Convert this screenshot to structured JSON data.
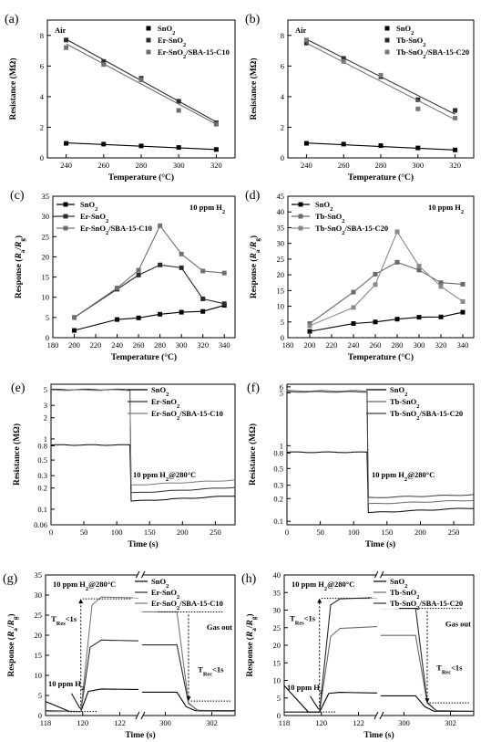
{
  "chart_data": [
    {
      "id": "a",
      "type": "line",
      "panel_label": "(a)",
      "annotation": "Air",
      "xlabel": "Temperature (°C)",
      "ylabel": "Resistance (MΩ)",
      "xlim": [
        230,
        330
      ],
      "ylim": [
        0,
        9
      ],
      "xticks": [
        240,
        260,
        280,
        300,
        320
      ],
      "yticks": [
        0,
        2,
        4,
        6,
        8
      ],
      "legend_position": "top-right",
      "series": [
        {
          "name": "SnO₂",
          "color": "#000000",
          "x": [
            240,
            260,
            280,
            300,
            320
          ],
          "y": [
            0.95,
            0.9,
            0.78,
            0.68,
            0.55
          ],
          "fit": [
            0.98,
            0.55
          ]
        },
        {
          "name": "Er-SnO₂",
          "color": "#2b2b2b",
          "x": [
            240,
            260,
            280,
            300,
            320
          ],
          "y": [
            7.7,
            6.3,
            5.2,
            3.7,
            2.3
          ],
          "fit": [
            7.75,
            2.35
          ]
        },
        {
          "name": "Er-SnO₂/SBA-15-C10",
          "color": "#6e6e6e",
          "x": [
            240,
            260,
            280,
            300,
            320
          ],
          "y": [
            7.2,
            6.1,
            5.1,
            3.1,
            2.2
          ],
          "fit": [
            7.45,
            2.2
          ]
        }
      ]
    },
    {
      "id": "b",
      "type": "line",
      "panel_label": "(b)",
      "annotation": "Air",
      "xlabel": "Temperature (°C)",
      "ylabel": "Resistance (MΩ)",
      "xlim": [
        230,
        330
      ],
      "ylim": [
        0,
        9
      ],
      "xticks": [
        240,
        260,
        280,
        300,
        320
      ],
      "yticks": [
        0,
        2,
        4,
        6,
        8
      ],
      "legend_position": "top-right",
      "series": [
        {
          "name": "SnO₂",
          "color": "#000000",
          "x": [
            240,
            260,
            280,
            300,
            320
          ],
          "y": [
            0.95,
            0.9,
            0.8,
            0.65,
            0.52
          ],
          "fit": [
            0.97,
            0.52
          ]
        },
        {
          "name": "Tb-SnO₂",
          "color": "#2b2b2b",
          "x": [
            240,
            260,
            280,
            300,
            320
          ],
          "y": [
            7.5,
            6.5,
            5.3,
            3.8,
            3.1
          ],
          "fit": [
            7.75,
            2.85
          ]
        },
        {
          "name": "Tb-SnO₂/SBA-15-C20",
          "color": "#7a7a7a",
          "x": [
            240,
            260,
            280,
            300,
            320
          ],
          "y": [
            7.7,
            6.3,
            5.4,
            3.2,
            2.6
          ],
          "fit": [
            7.5,
            2.5
          ]
        }
      ]
    },
    {
      "id": "c",
      "type": "line",
      "panel_label": "(c)",
      "annotation": "10 ppm H₂",
      "xlabel": "Temperature (°C)",
      "ylabel": "Response (Ra/Rg)",
      "xlim": [
        180,
        350
      ],
      "ylim": [
        0,
        35
      ],
      "xticks": [
        180,
        200,
        220,
        240,
        260,
        280,
        300,
        320,
        340
      ],
      "yticks": [
        0,
        5,
        10,
        15,
        20,
        25,
        30,
        35
      ],
      "legend_position": "top-left",
      "series": [
        {
          "name": "SnO₂",
          "color": "#000000",
          "x": [
            200,
            240,
            260,
            280,
            300,
            320,
            340
          ],
          "y": [
            1.8,
            4.5,
            4.9,
            5.8,
            6.3,
            6.5,
            8.0
          ]
        },
        {
          "name": "Er-SnO₂",
          "color": "#2b2b2b",
          "x": [
            200,
            240,
            260,
            280,
            300,
            320,
            340
          ],
          "y": [
            5.0,
            12.0,
            15.5,
            18.0,
            17.3,
            9.6,
            8.4
          ]
        },
        {
          "name": "Er-SnO₂/SBA-15-C10",
          "color": "#707070",
          "x": [
            200,
            240,
            260,
            280,
            300,
            320,
            340
          ],
          "y": [
            5.0,
            12.3,
            16.7,
            27.7,
            20.7,
            16.5,
            16.0
          ]
        }
      ]
    },
    {
      "id": "d",
      "type": "line",
      "panel_label": "(d)",
      "annotation": "10 ppm H₂",
      "xlabel": "Temperature (°C)",
      "ylabel": "Response (Ra/Rg)",
      "xlim": [
        180,
        350
      ],
      "ylim": [
        0,
        45
      ],
      "xticks": [
        180,
        200,
        220,
        240,
        260,
        280,
        300,
        320,
        340
      ],
      "yticks": [
        0,
        5,
        10,
        15,
        20,
        25,
        30,
        35,
        40,
        45
      ],
      "legend_position": "top-left",
      "series": [
        {
          "name": "SnO₂",
          "color": "#000000",
          "x": [
            200,
            240,
            260,
            280,
            300,
            320,
            340
          ],
          "y": [
            2.0,
            4.5,
            5.0,
            5.9,
            6.5,
            6.6,
            8.1
          ]
        },
        {
          "name": "Tb-SnO₂",
          "color": "#6a6a6a",
          "x": [
            200,
            240,
            260,
            280,
            300,
            320,
            340
          ],
          "y": [
            4.5,
            14.5,
            20.2,
            24.0,
            21.5,
            17.5,
            17.0
          ]
        },
        {
          "name": "Tb-SnO₂/SBA-15-C20",
          "color": "#8a8a8a",
          "x": [
            200,
            240,
            260,
            280,
            300,
            320,
            340
          ],
          "y": [
            3.8,
            9.6,
            16.9,
            33.7,
            22.8,
            16.3,
            11.5
          ]
        }
      ]
    },
    {
      "id": "e",
      "type": "line",
      "panel_label": "(e)",
      "annotation": "10 ppm H₂@280°C",
      "xlabel": "Time (s)",
      "ylabel": "Resistance (MΩ)",
      "yscale": "log",
      "xlim": [
        0,
        280
      ],
      "ylim": [
        0.06,
        6
      ],
      "xticks": [
        0,
        50,
        100,
        150,
        200,
        250
      ],
      "yticks": [
        5,
        3,
        2,
        1,
        0.8,
        0.5,
        0.3,
        0.2,
        0.1,
        0.06
      ],
      "ytick_labels": [
        "5",
        "3",
        "2",
        "1",
        "0.8",
        "0.5",
        "0.3",
        "0.2",
        "0.1",
        "0.06"
      ],
      "legend_position": "top-right",
      "series": [
        {
          "name": "SnO₂",
          "color": "#000000",
          "x": [
            0,
            120,
            122,
            280
          ],
          "y": [
            0.82,
            0.82,
            0.13,
            0.155
          ]
        },
        {
          "name": "Er-SnO₂",
          "color": "#2b2b2b",
          "x": [
            0,
            120,
            122,
            280
          ],
          "y": [
            5.05,
            5.05,
            0.17,
            0.205
          ]
        },
        {
          "name": "Er-SnO₂/SBA-15-C10",
          "color": "#777777",
          "x": [
            0,
            120,
            122,
            280
          ],
          "y": [
            4.95,
            4.95,
            0.22,
            0.26
          ]
        }
      ]
    },
    {
      "id": "f",
      "type": "line",
      "panel_label": "(f)",
      "annotation": "10 ppm H₂@280°C",
      "xlabel": "Time (s)",
      "ylabel": "Resistance (MΩ)",
      "yscale": "log",
      "xlim": [
        0,
        280
      ],
      "ylim": [
        0.09,
        6.5
      ],
      "xticks": [
        0,
        50,
        100,
        150,
        200,
        250
      ],
      "yticks": [
        6,
        5,
        1,
        0.8,
        0.5,
        0.3,
        0.2,
        0.1
      ],
      "ytick_labels": [
        "6",
        "5",
        "1",
        "0.8",
        "0.5",
        "0.3",
        "0.2",
        "0.1"
      ],
      "legend_position": "top-right",
      "series": [
        {
          "name": "SnO₂",
          "color": "#000000",
          "x": [
            0,
            120,
            122,
            280
          ],
          "y": [
            0.82,
            0.82,
            0.13,
            0.15
          ]
        },
        {
          "name": "Tb-SnO₂",
          "color": "#666666",
          "x": [
            0,
            120,
            122,
            280
          ],
          "y": [
            5.3,
            5.3,
            0.17,
            0.19
          ]
        },
        {
          "name": "Tb-SnO₂/SBA-15-C20",
          "color": "#3a3a3a",
          "x": [
            0,
            120,
            122,
            280
          ],
          "y": [
            5.15,
            5.15,
            0.205,
            0.225
          ]
        }
      ]
    },
    {
      "id": "g",
      "type": "line",
      "panel_label": "(g)",
      "annotation": "10 ppm H₂@280°C",
      "xlabel": "Time (s)",
      "ylabel": "Response (Ra/Rg)",
      "broken_x": true,
      "xlim_left": [
        118,
        123
      ],
      "xlim_right": [
        299,
        303
      ],
      "xticks_left": [
        118,
        120,
        122
      ],
      "xticks_right": [
        300,
        302
      ],
      "ylim": [
        0,
        35
      ],
      "yticks": [
        0,
        5,
        10,
        15,
        20,
        25,
        30,
        35
      ],
      "legend_position": "top-right",
      "labels": {
        "h2_in": "10 ppm H₂",
        "gas_out": "Gas out",
        "t_res": "T",
        "t_res_sub": "Res",
        "t_res_tail": "<1s",
        "t_rec": "T",
        "t_rec_sub": "Rec",
        "t_rec_tail": "<1s"
      },
      "series": [
        {
          "name": "SnO₂",
          "color": "#000000",
          "left": {
            "x": [
              118,
              119.3,
              119.9,
              120.3,
              121,
              123
            ],
            "y": [
              3.5,
              1.0,
              1.0,
              6.0,
              6.6,
              6.5
            ]
          },
          "right": {
            "x": [
              299,
              300.5,
              300.9,
              301.3,
              303
            ],
            "y": [
              5.8,
              5.8,
              2.2,
              1.2,
              1.2
            ]
          }
        },
        {
          "name": "Er-SnO₂",
          "color": "#2b2b2b",
          "left": {
            "x": [
              118,
              119.9,
              120.4,
              121,
              123
            ],
            "y": [
              1.2,
              1.0,
              17.0,
              18.8,
              18.6
            ]
          },
          "right": {
            "x": [
              299,
              300.5,
              301.0,
              301.4,
              303
            ],
            "y": [
              17.6,
              17.6,
              3.0,
              1.3,
              1.1
            ]
          }
        },
        {
          "name": "Er-SnO₂/SBA-15-C10",
          "color": "#777777",
          "left": {
            "x": [
              118,
              119.9,
              120.5,
              121,
              123
            ],
            "y": [
              1.0,
              1.0,
              27.5,
              29.5,
              29.3
            ]
          },
          "right": {
            "x": [
              299,
              300.5,
              301.0,
              301.4,
              303
            ],
            "y": [
              25.8,
              25.8,
              3.2,
              1.1,
              1.0
            ]
          }
        }
      ]
    },
    {
      "id": "h",
      "type": "line",
      "panel_label": "(h)",
      "annotation": "10 ppm H₂@280°C",
      "xlabel": "Time (s)",
      "ylabel": "Response (Ra/Rg)",
      "broken_x": true,
      "xlim_left": [
        118,
        123
      ],
      "xlim_right": [
        299,
        303
      ],
      "xticks_left": [
        118,
        120,
        122
      ],
      "xticks_right": [
        300,
        302
      ],
      "ylim": [
        0,
        40
      ],
      "yticks": [
        0,
        5,
        10,
        15,
        20,
        25,
        30,
        35,
        40
      ],
      "legend_position": "top-right",
      "labels": {
        "h2_in": "10 ppm H₂",
        "gas_out": "Gas out",
        "t_res": "T",
        "t_res_sub": "Res",
        "t_res_tail": "<1s",
        "t_rec": "T",
        "t_rec_sub": "Rec",
        "t_rec_tail": "<1s"
      },
      "series": [
        {
          "name": "SnO₂",
          "color": "#000000",
          "left": {
            "x": [
              118,
              119.3,
              119.9,
              120.4,
              121,
              123
            ],
            "y": [
              8.5,
              1.0,
              1.0,
              6.3,
              6.6,
              6.4
            ]
          },
          "right": {
            "x": [
              299,
              300.5,
              300.9,
              301.3,
              303
            ],
            "y": [
              5.6,
              5.6,
              2.5,
              1.2,
              1.2
            ]
          }
        },
        {
          "name": "Tb-SnO₂",
          "color": "#6a6a6a",
          "left": {
            "x": [
              118,
              119.9,
              120.5,
              121,
              123
            ],
            "y": [
              1.0,
              1.0,
              22.5,
              24.8,
              25.3
            ]
          },
          "right": {
            "x": [
              299,
              300.5,
              301.0,
              301.4,
              303
            ],
            "y": [
              22.8,
              22.8,
              3.5,
              1.4,
              1.2
            ]
          }
        },
        {
          "name": "Tb-SnO₂/SBA-15-C20",
          "color": "#2b2b2b",
          "left": {
            "x": [
              118,
              119.9,
              120.5,
              121,
              123
            ],
            "y": [
              1.0,
              1.0,
              31.5,
              33.2,
              33.6
            ]
          },
          "right": {
            "x": [
              299,
              300.5,
              301.0,
              301.4,
              303
            ],
            "y": [
              30.5,
              30.5,
              3.8,
              1.3,
              1.2
            ]
          }
        }
      ]
    }
  ]
}
